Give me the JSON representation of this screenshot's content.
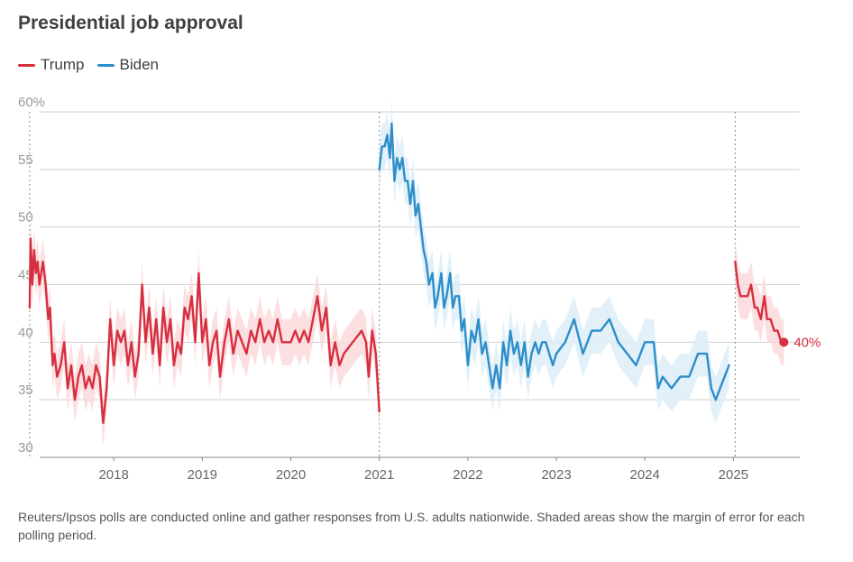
{
  "title": "Presidential job approval",
  "footnote": "Reuters/Ipsos polls are conducted online and gather responses from U.S. adults nationwide. Shaded areas show the margin of error for each polling period.",
  "legend": [
    {
      "label": "Trump",
      "color": "#d62f3f"
    },
    {
      "label": "Biden",
      "color": "#2d8ec9"
    }
  ],
  "chart_data": {
    "type": "line",
    "title": "Presidential job approval",
    "ylim": [
      30,
      60
    ],
    "yticks": [
      "60%",
      "55",
      "50",
      "45",
      "40",
      "35",
      "30"
    ],
    "xticks": [
      "2018",
      "2019",
      "2020",
      "2021",
      "2022",
      "2023",
      "2024",
      "2025"
    ],
    "xlim": [
      2017.0,
      2025.75
    ],
    "grid": true,
    "legend_position": "top-left",
    "margin_of_error": 2,
    "end_label": "40%",
    "series": [
      {
        "name": "Trump",
        "color": "#d62f3f",
        "band_color": "#fbd9dc",
        "x": [
          2017.05,
          2017.06,
          2017.08,
          2017.1,
          2017.12,
          2017.14,
          2017.16,
          2017.18,
          2017.2,
          2017.23,
          2017.26,
          2017.28,
          2017.31,
          2017.33,
          2017.36,
          2017.4,
          2017.44,
          2017.48,
          2017.52,
          2017.56,
          2017.6,
          2017.64,
          2017.68,
          2017.72,
          2017.76,
          2017.8,
          2017.84,
          2017.88,
          2017.92,
          2017.96,
          2018.0,
          2018.04,
          2018.08,
          2018.12,
          2018.16,
          2018.2,
          2018.24,
          2018.28,
          2018.32,
          2018.36,
          2018.4,
          2018.44,
          2018.48,
          2018.52,
          2018.56,
          2018.6,
          2018.64,
          2018.68,
          2018.72,
          2018.76,
          2018.8,
          2018.84,
          2018.88,
          2018.92,
          2018.96,
          2019.0,
          2019.04,
          2019.08,
          2019.12,
          2019.16,
          2019.2,
          2019.25,
          2019.3,
          2019.35,
          2019.4,
          2019.45,
          2019.5,
          2019.55,
          2019.6,
          2019.65,
          2019.7,
          2019.75,
          2019.8,
          2019.85,
          2019.9,
          2019.95,
          2020.0,
          2020.05,
          2020.1,
          2020.15,
          2020.2,
          2020.25,
          2020.3,
          2020.35,
          2020.4,
          2020.45,
          2020.5,
          2020.55,
          2020.6,
          2020.7,
          2020.8,
          2020.85,
          2020.88,
          2020.92,
          2020.96,
          2021.0
        ],
        "values": [
          43,
          49,
          45,
          48,
          46,
          47,
          45,
          46,
          47,
          45,
          42,
          43,
          38,
          39,
          37,
          38,
          40,
          36,
          38,
          35,
          37,
          38,
          36,
          37,
          36,
          38,
          37,
          33,
          36,
          42,
          38,
          41,
          40,
          41,
          38,
          40,
          37,
          39,
          45,
          40,
          43,
          39,
          42,
          38,
          43,
          40,
          42,
          38,
          40,
          39,
          43,
          42,
          44,
          40,
          46,
          40,
          42,
          38,
          40,
          41,
          37,
          40,
          42,
          39,
          41,
          40,
          39,
          41,
          40,
          42,
          40,
          41,
          40,
          42,
          40,
          40,
          40,
          41,
          40,
          41,
          40,
          42,
          44,
          41,
          43,
          38,
          40,
          38,
          39,
          40,
          41,
          40,
          37,
          41,
          39,
          34
        ]
      },
      {
        "name": "Biden",
        "color": "#2d8ec9",
        "band_color": "#dcedf8",
        "x": [
          2021.0,
          2021.03,
          2021.06,
          2021.09,
          2021.12,
          2021.14,
          2021.17,
          2021.2,
          2021.23,
          2021.26,
          2021.29,
          2021.32,
          2021.35,
          2021.38,
          2021.41,
          2021.44,
          2021.47,
          2021.5,
          2021.53,
          2021.56,
          2021.6,
          2021.63,
          2021.66,
          2021.7,
          2021.73,
          2021.76,
          2021.8,
          2021.83,
          2021.86,
          2021.9,
          2021.93,
          2021.96,
          2022.0,
          2022.04,
          2022.08,
          2022.12,
          2022.16,
          2022.2,
          2022.24,
          2022.28,
          2022.32,
          2022.36,
          2022.4,
          2022.44,
          2022.48,
          2022.52,
          2022.56,
          2022.6,
          2022.64,
          2022.68,
          2022.72,
          2022.76,
          2022.8,
          2022.84,
          2022.88,
          2022.92,
          2022.96,
          2023.0,
          2023.1,
          2023.2,
          2023.3,
          2023.4,
          2023.5,
          2023.6,
          2023.7,
          2023.8,
          2023.9,
          2024.0,
          2024.1,
          2024.15,
          2024.2,
          2024.3,
          2024.4,
          2024.5,
          2024.6,
          2024.7,
          2024.75,
          2024.8,
          2024.85,
          2024.9,
          2024.95
        ],
        "values": [
          55,
          57,
          57,
          58,
          56,
          59,
          54,
          56,
          55,
          56,
          54,
          54,
          52,
          54,
          51,
          52,
          50,
          48,
          47,
          45,
          46,
          43,
          44,
          46,
          43,
          44,
          46,
          43,
          44,
          44,
          41,
          42,
          38,
          41,
          40,
          42,
          39,
          40,
          38,
          36,
          38,
          36,
          40,
          38,
          41,
          39,
          40,
          38,
          40,
          37,
          39,
          40,
          39,
          40,
          40,
          39,
          38,
          39,
          40,
          42,
          39,
          41,
          41,
          42,
          40,
          39,
          38,
          40,
          40,
          36,
          37,
          36,
          37,
          37,
          39,
          39,
          36,
          35,
          36,
          37,
          38
        ]
      },
      {
        "name": "Trump",
        "color": "#d62f3f",
        "band_color": "#fbd9dc",
        "x": [
          2025.02,
          2025.05,
          2025.08,
          2025.13,
          2025.16,
          2025.2,
          2025.24,
          2025.27,
          2025.31,
          2025.35,
          2025.38,
          2025.42,
          2025.46,
          2025.5,
          2025.54,
          2025.57
        ],
        "values": [
          47,
          45,
          44,
          44,
          44,
          45,
          43,
          43,
          42,
          44,
          42,
          42,
          41,
          41,
          40,
          40
        ]
      }
    ]
  }
}
